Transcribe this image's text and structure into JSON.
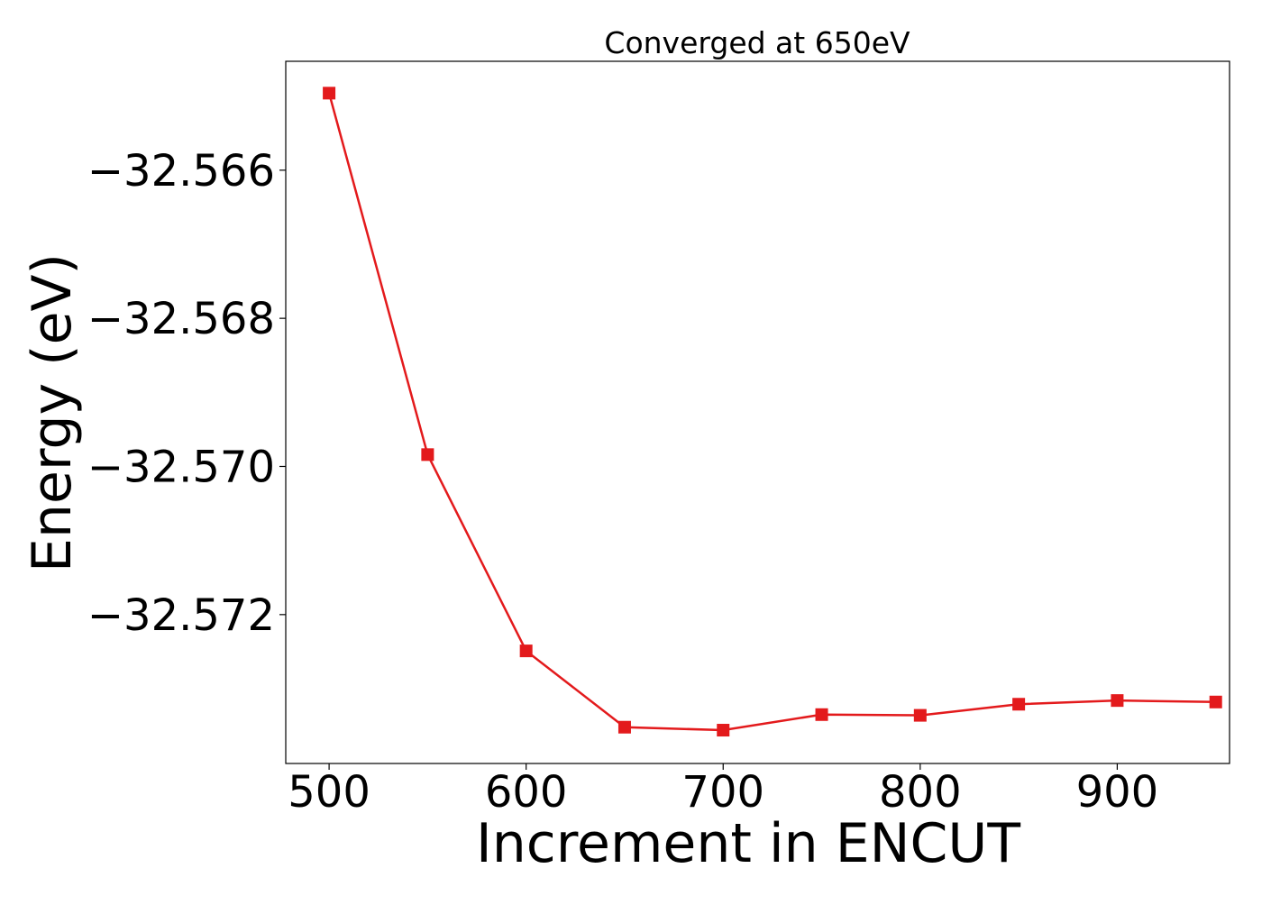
{
  "chart_data": {
    "type": "line",
    "title": "Converged at 650eV",
    "xlabel": "Increment in ENCUT",
    "ylabel": "Energy (eV)",
    "xlim": [
      478,
      957
    ],
    "ylim": [
      -32.57401,
      -32.56453
    ],
    "x_ticks": [
      500,
      600,
      700,
      800,
      900
    ],
    "x_tick_labels": [
      "500",
      "600",
      "700",
      "800",
      "900"
    ],
    "y_ticks": [
      -32.566,
      -32.568,
      -32.57,
      -32.572
    ],
    "y_tick_labels": [
      "−32.566",
      "−32.568",
      "−32.570",
      "−32.572"
    ],
    "grid": false,
    "series": [
      {
        "color": "#e31a1c",
        "marker": "square",
        "x": [
          500,
          550,
          600,
          650,
          700,
          750,
          800,
          850,
          900,
          950
        ],
        "y": [
          -32.56496,
          -32.56984,
          -32.57249,
          -32.57352,
          -32.57356,
          -32.57335,
          -32.57336,
          -32.57321,
          -32.57316,
          -32.57318
        ]
      }
    ]
  }
}
